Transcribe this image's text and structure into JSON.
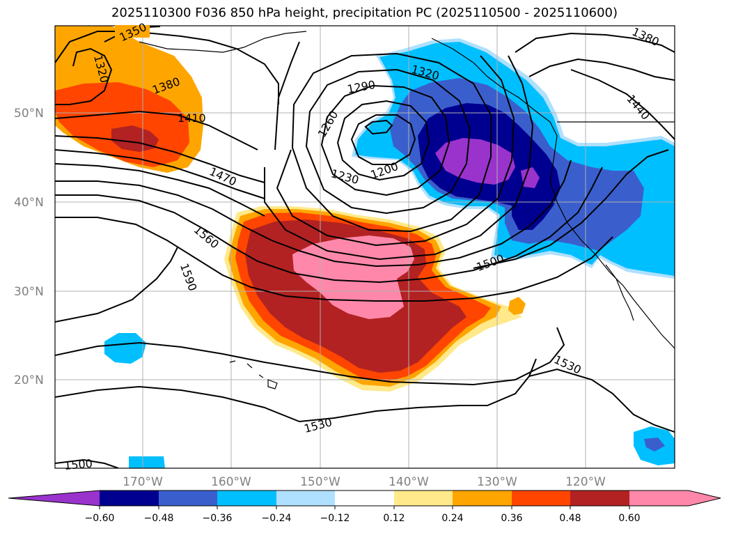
{
  "title": "2025110300 F036 850 hPa height, precipitation PC (2025110500 - 2025110600)",
  "lat_labels": [
    "50°N",
    "40°N",
    "30°N",
    "20°N"
  ],
  "lon_labels": [
    "170°W",
    "160°W",
    "150°W",
    "140°W",
    "130°W",
    "120°W"
  ],
  "contour_labels": [
    "1350",
    "1320",
    "1380",
    "1410",
    "1470",
    "1560",
    "1590",
    "1290",
    "1260",
    "1230",
    "1200",
    "1320",
    "1500",
    "1530",
    "1530",
    "1500",
    "1380",
    "1440"
  ],
  "colorbar": {
    "ticks": [
      "−0.60",
      "−0.48",
      "−0.36",
      "−0.24",
      "−0.12",
      "0.12",
      "0.24",
      "0.36",
      "0.48",
      "0.60"
    ],
    "colors": [
      "#9933cc",
      "#000090",
      "#3a5fcd",
      "#00bfff",
      "#b0e0ff",
      "#ffffff",
      "#ffe98a",
      "#ffa500",
      "#ff4500",
      "#b22222",
      "#ff88aa",
      "#ff88aa"
    ]
  }
}
